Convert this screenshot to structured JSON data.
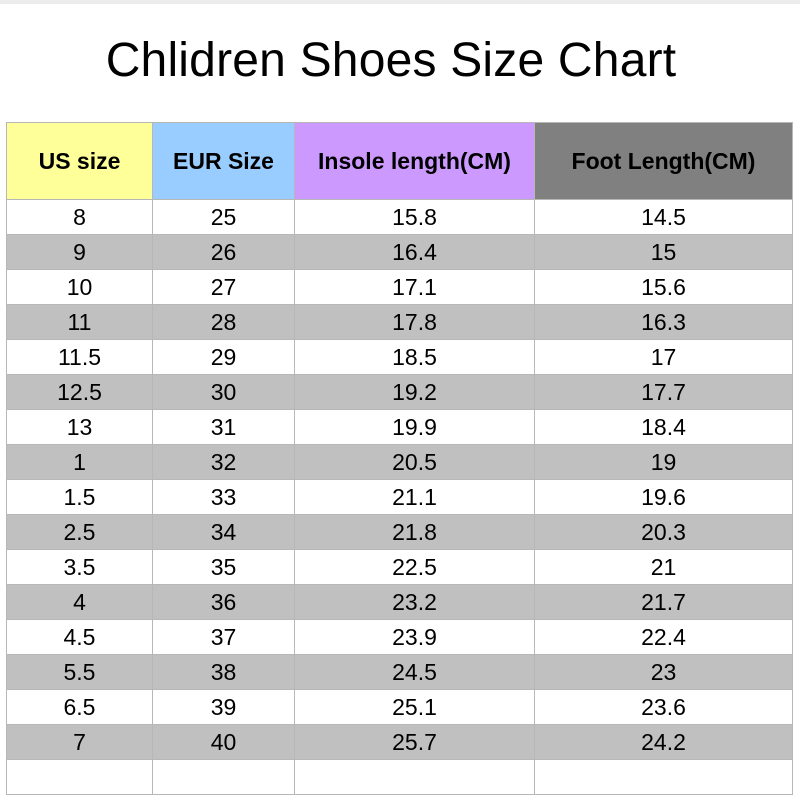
{
  "title": "Chlidren Shoes Size Chart",
  "colors": {
    "us_header": "#ffff99",
    "eur_header": "#99ccff",
    "insole_header": "#cc99ff",
    "foot_header": "#808080",
    "alt_row": "#c0c0c0"
  },
  "headers": [
    "US size",
    "EUR Size",
    "Insole length(CM)",
    "Foot Length(CM)"
  ],
  "rows": [
    [
      "8",
      "25",
      "15.8",
      "14.5"
    ],
    [
      "9",
      "26",
      "16.4",
      "15"
    ],
    [
      "10",
      "27",
      "17.1",
      "15.6"
    ],
    [
      "11",
      "28",
      "17.8",
      "16.3"
    ],
    [
      "11.5",
      "29",
      "18.5",
      "17"
    ],
    [
      "12.5",
      "30",
      "19.2",
      "17.7"
    ],
    [
      "13",
      "31",
      "19.9",
      "18.4"
    ],
    [
      "1",
      "32",
      "20.5",
      "19"
    ],
    [
      "1.5",
      "33",
      "21.1",
      "19.6"
    ],
    [
      "2.5",
      "34",
      "21.8",
      "20.3"
    ],
    [
      "3.5",
      "35",
      "22.5",
      "21"
    ],
    [
      "4",
      "36",
      "23.2",
      "21.7"
    ],
    [
      "4.5",
      "37",
      "23.9",
      "22.4"
    ],
    [
      "5.5",
      "38",
      "24.5",
      "23"
    ],
    [
      "6.5",
      "39",
      "25.1",
      "23.6"
    ],
    [
      "7",
      "40",
      "25.7",
      "24.2"
    ]
  ]
}
